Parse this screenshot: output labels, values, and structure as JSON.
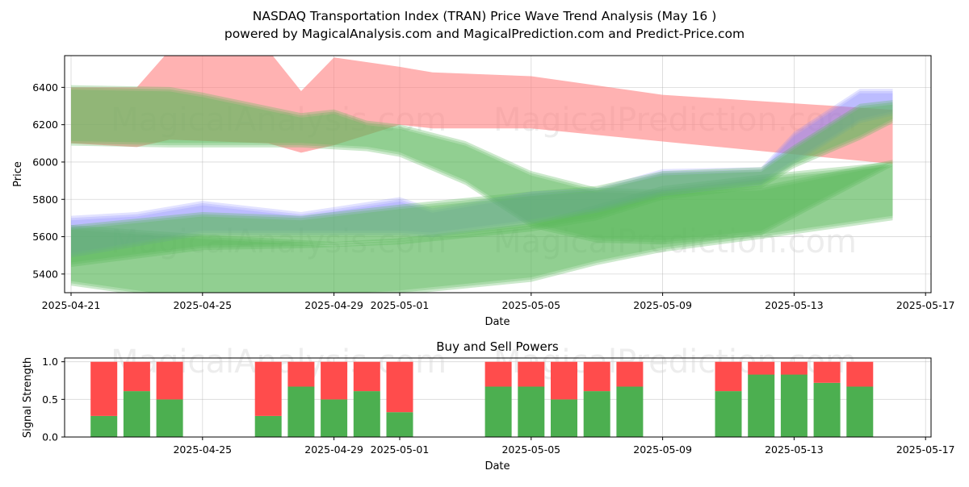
{
  "title_line1": "NASDAQ Transportation Index (TRAN) Price Wave Trend Analysis (May 16 )",
  "title_line2": "powered by MagicalAnalysis.com and MagicalPrediction.com and Predict-Price.com",
  "watermarks": [
    "MagicalAnalysis.com",
    "MagicalPrediction.com"
  ],
  "colors": {
    "red_band": "#ff7f7f",
    "green_band": "#5cb85c",
    "blue_band": "#8080ff",
    "brown_overlap": "#8b7d50",
    "buy_bar": "#4caf50",
    "sell_bar": "#ff4c4c"
  },
  "chart_data": [
    {
      "type": "area",
      "subtitle": "",
      "xlabel": "Date",
      "ylabel": "Price",
      "xlim": [
        "2025-04-21",
        "2025-05-17"
      ],
      "ylim": [
        5300,
        6570
      ],
      "x_ticks": [
        "2025-04-21",
        "2025-04-25",
        "2025-04-29",
        "2025-05-01",
        "2025-05-05",
        "2025-05-09",
        "2025-05-13",
        "2025-05-17"
      ],
      "y_ticks": [
        5400,
        5600,
        5800,
        6000,
        6200,
        6400
      ],
      "grid": true,
      "series": [
        {
          "color": "red",
          "kind": "band",
          "x": [
            "2025-04-21",
            "2025-04-23",
            "2025-04-24",
            "2025-04-27",
            "2025-04-28",
            "2025-04-29",
            "2025-05-01",
            "2025-05-02",
            "2025-05-05",
            "2025-05-09",
            "2025-05-16"
          ],
          "upper": [
            6400,
            6400,
            6600,
            6600,
            6380,
            6560,
            6510,
            6480,
            6460,
            6360,
            6280
          ],
          "lower": [
            6100,
            6080,
            6120,
            6100,
            6050,
            6090,
            6200,
            6180,
            6180,
            6110,
            5990
          ]
        },
        {
          "color": "green",
          "kind": "band",
          "x": [
            "2025-04-21",
            "2025-04-24",
            "2025-04-25",
            "2025-04-28",
            "2025-04-29",
            "2025-04-30",
            "2025-05-01",
            "2025-05-03",
            "2025-05-05",
            "2025-05-07",
            "2025-05-09",
            "2025-05-12",
            "2025-05-16"
          ],
          "upper": [
            6400,
            6390,
            6360,
            6250,
            6270,
            6210,
            6190,
            6100,
            5940,
            5850,
            5840,
            5860,
            6000
          ],
          "lower": [
            6100,
            6090,
            6090,
            6090,
            6080,
            6070,
            6040,
            5890,
            5660,
            5580,
            5570,
            5620,
            5990
          ]
        },
        {
          "color": "green",
          "kind": "band",
          "x": [
            "2025-04-21",
            "2025-04-25",
            "2025-04-29",
            "2025-05-01",
            "2025-05-05",
            "2025-05-07",
            "2025-05-09",
            "2025-05-12",
            "2025-05-16"
          ],
          "upper": [
            5650,
            5600,
            5560,
            5580,
            5660,
            5760,
            5860,
            5920,
            5990
          ],
          "lower": [
            5350,
            5250,
            5280,
            5300,
            5370,
            5460,
            5530,
            5600,
            5700
          ]
        },
        {
          "color": "blue",
          "kind": "band",
          "x": [
            "2025-04-21",
            "2025-04-23",
            "2025-04-25",
            "2025-04-28",
            "2025-05-01",
            "2025-05-02",
            "2025-05-05",
            "2025-05-07",
            "2025-05-09",
            "2025-05-12",
            "2025-05-13",
            "2025-05-15",
            "2025-05-16"
          ],
          "upper": [
            5700,
            5720,
            5780,
            5720,
            5800,
            5740,
            5830,
            5850,
            5950,
            5960,
            6150,
            6380,
            6380
          ],
          "lower": [
            5500,
            5560,
            5620,
            5620,
            5620,
            5610,
            5680,
            5740,
            5830,
            5890,
            6000,
            6220,
            6260
          ]
        },
        {
          "color": "green",
          "kind": "band",
          "x": [
            "2025-04-21",
            "2025-04-25",
            "2025-04-28",
            "2025-05-01",
            "2025-05-05",
            "2025-05-07",
            "2025-05-09",
            "2025-05-12",
            "2025-05-13",
            "2025-05-15",
            "2025-05-16"
          ],
          "upper": [
            5650,
            5720,
            5700,
            5760,
            5830,
            5860,
            5940,
            5960,
            6080,
            6300,
            6320
          ],
          "lower": [
            5450,
            5540,
            5550,
            5570,
            5640,
            5700,
            5810,
            5870,
            5980,
            6130,
            6220
          ]
        }
      ]
    },
    {
      "type": "bar",
      "subtitle": "Buy and Sell Powers",
      "xlabel": "Date",
      "ylabel": "Signal Strength",
      "xlim": [
        "2025-04-21",
        "2025-05-17"
      ],
      "ylim": [
        0,
        1.05
      ],
      "x_ticks": [
        "2025-04-25",
        "2025-04-29",
        "2025-05-01",
        "2025-05-05",
        "2025-05-09",
        "2025-05-13",
        "2025-05-17"
      ],
      "y_ticks": [
        "0.0",
        "0.5",
        "1.0"
      ],
      "grid": true,
      "categories": [
        "2025-04-22",
        "2025-04-23",
        "2025-04-24",
        "2025-04-27",
        "2025-04-28",
        "2025-04-29",
        "2025-04-30",
        "2025-05-01",
        "2025-05-04",
        "2025-05-05",
        "2025-05-06",
        "2025-05-07",
        "2025-05-08",
        "2025-05-11",
        "2025-05-12",
        "2025-05-13",
        "2025-05-14",
        "2025-05-15"
      ],
      "series": [
        {
          "color": "green",
          "values": [
            0.28,
            0.61,
            0.5,
            0.28,
            0.67,
            0.5,
            0.61,
            0.33,
            0.67,
            0.67,
            0.5,
            0.61,
            0.67,
            0.61,
            0.83,
            0.83,
            0.72,
            0.67
          ]
        },
        {
          "color": "red",
          "values": [
            0.72,
            0.39,
            0.5,
            0.72,
            0.33,
            0.5,
            0.39,
            0.67,
            0.33,
            0.33,
            0.5,
            0.39,
            0.33,
            0.39,
            0.17,
            0.17,
            0.28,
            0.33
          ]
        }
      ]
    }
  ]
}
